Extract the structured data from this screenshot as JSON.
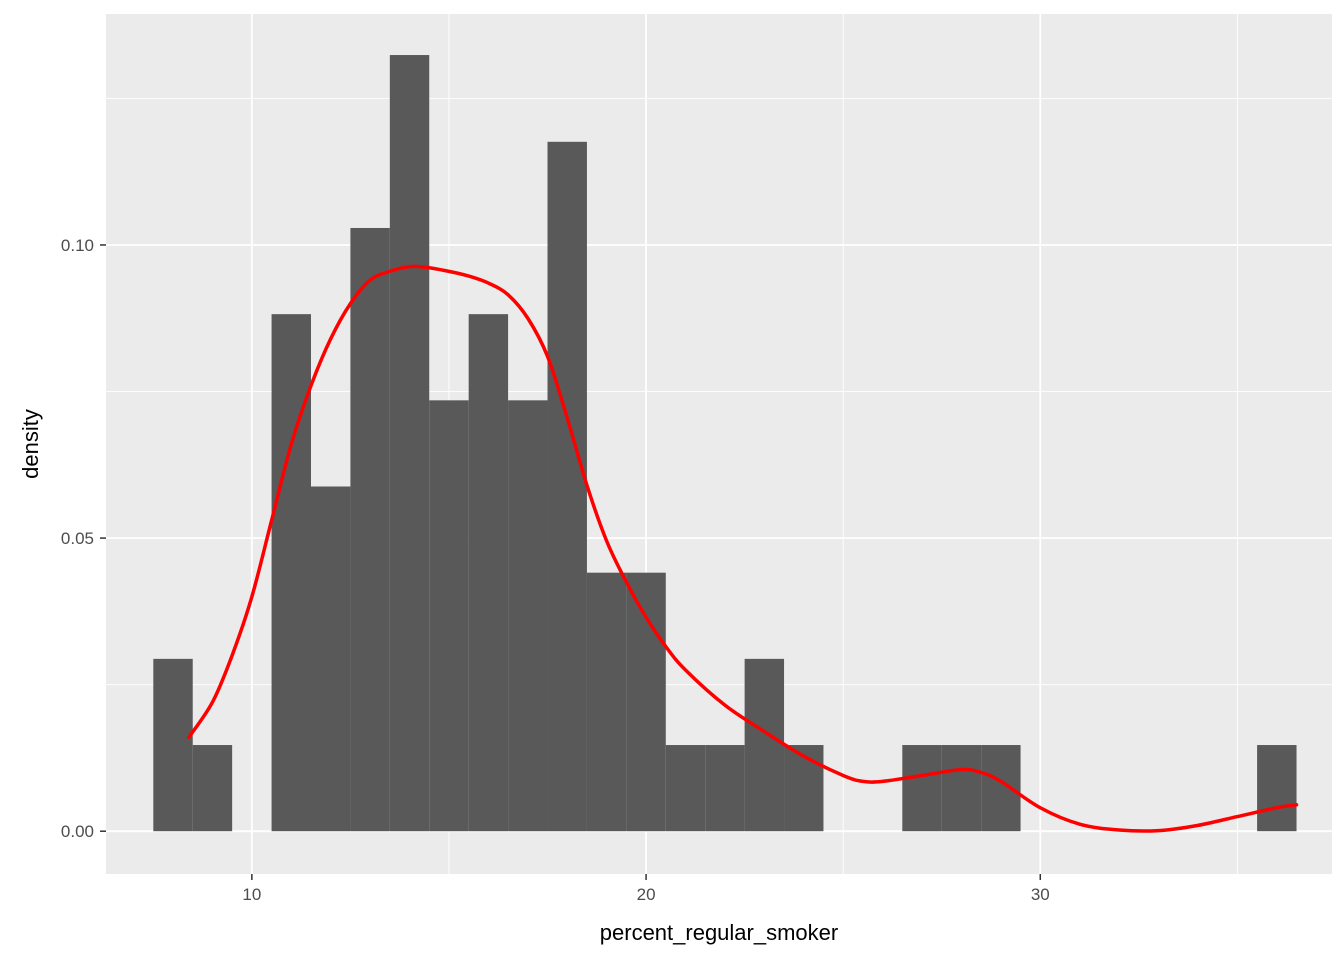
{
  "chart_data": {
    "type": "bar",
    "title": "",
    "xlabel": "percent_regular_smoker",
    "ylabel": "density",
    "xlim": [
      6.3,
      37.4
    ],
    "ylim": [
      -0.0073,
      0.1394
    ],
    "x_ticks": [
      10,
      20,
      30
    ],
    "x_tick_labels": [
      "10",
      "20",
      "30"
    ],
    "x_minor_ticks": [
      15,
      25,
      35
    ],
    "y_ticks": [
      0,
      0.05,
      0.1
    ],
    "y_tick_labels": [
      "0.00",
      "0.05",
      "0.10"
    ],
    "y_minor_ticks": [
      0.025,
      0.075,
      0.125
    ],
    "grid": true,
    "bin_width": 1,
    "histogram": {
      "name": "histogram",
      "color": "#595959",
      "bins": [
        {
          "x0": 7.5,
          "x1": 8.5,
          "density": 0.0294
        },
        {
          "x0": 8.5,
          "x1": 9.5,
          "density": 0.0147
        },
        {
          "x0": 9.5,
          "x1": 10.5,
          "density": 0
        },
        {
          "x0": 10.5,
          "x1": 11.5,
          "density": 0.0882
        },
        {
          "x0": 11.5,
          "x1": 12.5,
          "density": 0.0588
        },
        {
          "x0": 12.5,
          "x1": 13.5,
          "density": 0.1029
        },
        {
          "x0": 13.5,
          "x1": 14.5,
          "density": 0.1324
        },
        {
          "x0": 14.5,
          "x1": 15.5,
          "density": 0.0735
        },
        {
          "x0": 15.5,
          "x1": 16.5,
          "density": 0.0882
        },
        {
          "x0": 16.5,
          "x1": 17.5,
          "density": 0.0735
        },
        {
          "x0": 17.5,
          "x1": 18.5,
          "density": 0.1176
        },
        {
          "x0": 18.5,
          "x1": 19.5,
          "density": 0.0441
        },
        {
          "x0": 19.5,
          "x1": 20.5,
          "density": 0.0441
        },
        {
          "x0": 20.5,
          "x1": 21.5,
          "density": 0.0147
        },
        {
          "x0": 21.5,
          "x1": 22.5,
          "density": 0.0147
        },
        {
          "x0": 22.5,
          "x1": 23.5,
          "density": 0.0294
        },
        {
          "x0": 23.5,
          "x1": 24.5,
          "density": 0.0147
        },
        {
          "x0": 24.5,
          "x1": 25.5,
          "density": 0
        },
        {
          "x0": 25.5,
          "x1": 26.5,
          "density": 0
        },
        {
          "x0": 26.5,
          "x1": 27.5,
          "density": 0.0147
        },
        {
          "x0": 27.5,
          "x1": 28.5,
          "density": 0.0147
        },
        {
          "x0": 28.5,
          "x1": 29.5,
          "density": 0.0147
        },
        {
          "x0": 29.5,
          "x1": 30.5,
          "density": 0
        },
        {
          "x0": 30.5,
          "x1": 31.5,
          "density": 0
        },
        {
          "x0": 31.5,
          "x1": 32.5,
          "density": 0
        },
        {
          "x0": 32.5,
          "x1": 33.5,
          "density": 0
        },
        {
          "x0": 33.5,
          "x1": 34.5,
          "density": 0
        },
        {
          "x0": 34.5,
          "x1": 35.5,
          "density": 0
        },
        {
          "x0": 35.5,
          "x1": 36.5,
          "density": 0.0147
        }
      ]
    },
    "density_curve": {
      "name": "density",
      "color": "#ff0000",
      "x": [
        8.4,
        9.0,
        9.5,
        10.0,
        10.5,
        11.0,
        11.5,
        12.0,
        12.5,
        13.0,
        13.5,
        14.0,
        14.4,
        15.0,
        15.5,
        16.0,
        16.5,
        17.0,
        17.5,
        18.0,
        18.5,
        19.0,
        19.5,
        20.0,
        20.5,
        21.0,
        22.0,
        23.0,
        24.0,
        25.0,
        25.5,
        26.0,
        27.0,
        28.0,
        28.5,
        29.0,
        30.0,
        31.0,
        32.0,
        33.0,
        34.0,
        35.0,
        36.0,
        36.5
      ],
      "y": [
        0.016,
        0.022,
        0.03,
        0.04,
        0.053,
        0.066,
        0.076,
        0.084,
        0.09,
        0.094,
        0.0955,
        0.0963,
        0.0962,
        0.0955,
        0.0947,
        0.0935,
        0.0915,
        0.0875,
        0.081,
        0.0705,
        0.059,
        0.0495,
        0.0425,
        0.0365,
        0.0315,
        0.0275,
        0.0215,
        0.017,
        0.0128,
        0.0095,
        0.0085,
        0.0085,
        0.0095,
        0.0105,
        0.01,
        0.0085,
        0.004,
        0.0012,
        0.0002,
        0.0001,
        0.001,
        0.0025,
        0.004,
        0.0045
      ]
    }
  }
}
